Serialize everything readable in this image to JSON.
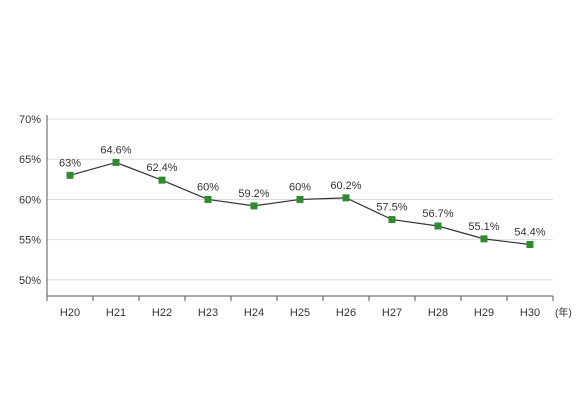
{
  "chart_data": {
    "type": "line",
    "categories": [
      "H20",
      "H21",
      "H22",
      "H23",
      "H24",
      "H25",
      "H26",
      "H27",
      "H28",
      "H29",
      "H30"
    ],
    "values": [
      63,
      64.6,
      62.4,
      60,
      59.2,
      60,
      60.2,
      57.5,
      56.7,
      55.1,
      54.4
    ],
    "data_labels": [
      "63%",
      "64.6%",
      "62.4%",
      "60%",
      "59.2%",
      "60%",
      "60.2%",
      "57.5%",
      "56.7%",
      "55.1%",
      "54.4%"
    ],
    "ylim": [
      48,
      70
    ],
    "yticks": [
      50,
      55,
      60,
      65,
      70
    ],
    "ytick_labels": [
      "50%",
      "55%",
      "60%",
      "65%",
      "70%"
    ],
    "x_unit_label": "(年)",
    "grid": "horizontal",
    "colors": {
      "marker": "#2e8b2e",
      "line": "#333333",
      "grid": "#dddddd",
      "axis": "#555555",
      "text": "#333333"
    }
  }
}
